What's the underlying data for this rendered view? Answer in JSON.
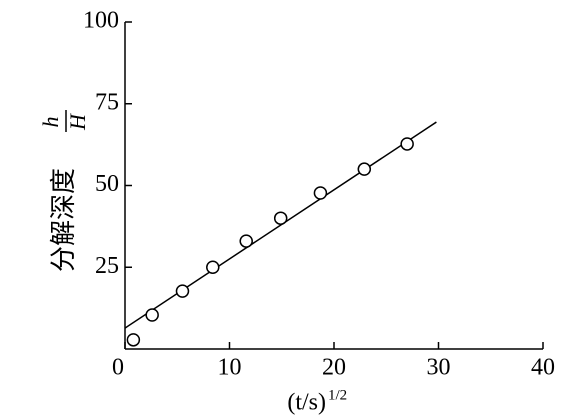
{
  "chart_data": {
    "type": "scatter",
    "xlabel": "(t/s)",
    "xlabel_sup": "1/2",
    "ylabel": "分解深度",
    "ylabel_num": "h",
    "ylabel_den": "H",
    "xlim": [
      0,
      40
    ],
    "xticks": [
      0,
      10,
      20,
      30,
      40
    ],
    "ylim": [
      0,
      100
    ],
    "yticks": [
      25,
      50,
      75,
      100
    ],
    "color": "#000000",
    "x": [
      0.8,
      2.6,
      5.5,
      8.4,
      11.6,
      14.9,
      18.7,
      22.9,
      27.0
    ],
    "values": [
      2.8,
      10.4,
      17.7,
      25.0,
      33.0,
      40.0,
      47.7,
      55.0,
      62.7
    ],
    "fit_line": {
      "x": [
        0,
        29.8
      ],
      "values": [
        6.4,
        69.4
      ]
    }
  }
}
